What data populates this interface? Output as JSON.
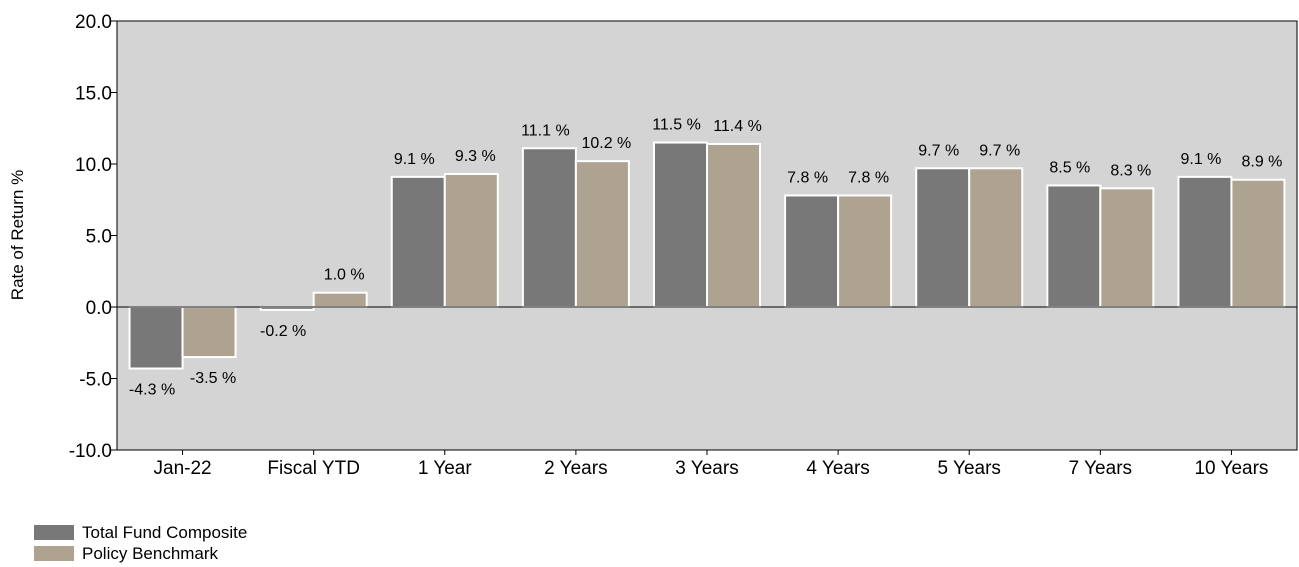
{
  "chart_data": {
    "type": "bar",
    "ylabel": "Rate of Return %",
    "ylim": [
      -10,
      20
    ],
    "yticks": [
      "20.0",
      "15.0",
      "10.0",
      "5.0",
      "0.0",
      "-5.0",
      "-10.0"
    ],
    "yticks_values": [
      20,
      15,
      10,
      5,
      0,
      -5,
      -10
    ],
    "categories": [
      "Jan-22",
      "Fiscal YTD",
      "1 Year",
      "2 Years",
      "3 Years",
      "4 Years",
      "5 Years",
      "7 Years",
      "10 Years"
    ],
    "series": [
      {
        "name": "Total Fund Composite",
        "color": "#787878",
        "values": [
          -4.3,
          -0.2,
          9.1,
          11.1,
          11.5,
          7.8,
          9.7,
          8.5,
          9.1
        ],
        "labels": [
          "-4.3 %",
          "-0.2 %",
          "9.1 %",
          "11.1 %",
          "11.5 %",
          "7.8 %",
          "9.7 %",
          "8.5 %",
          "9.1 %"
        ]
      },
      {
        "name": "Policy Benchmark",
        "color": "#aea290",
        "values": [
          -3.5,
          1.0,
          9.3,
          10.2,
          11.4,
          7.8,
          9.7,
          8.3,
          8.9
        ],
        "labels": [
          "-3.5 %",
          "1.0 %",
          "9.3 %",
          "10.2 %",
          "11.4 %",
          "7.8 %",
          "9.7 %",
          "8.3 %",
          "8.9 %"
        ]
      }
    ],
    "plot_background": "#d4d4d4",
    "grid": false,
    "legend_position": "bottom-left"
  }
}
